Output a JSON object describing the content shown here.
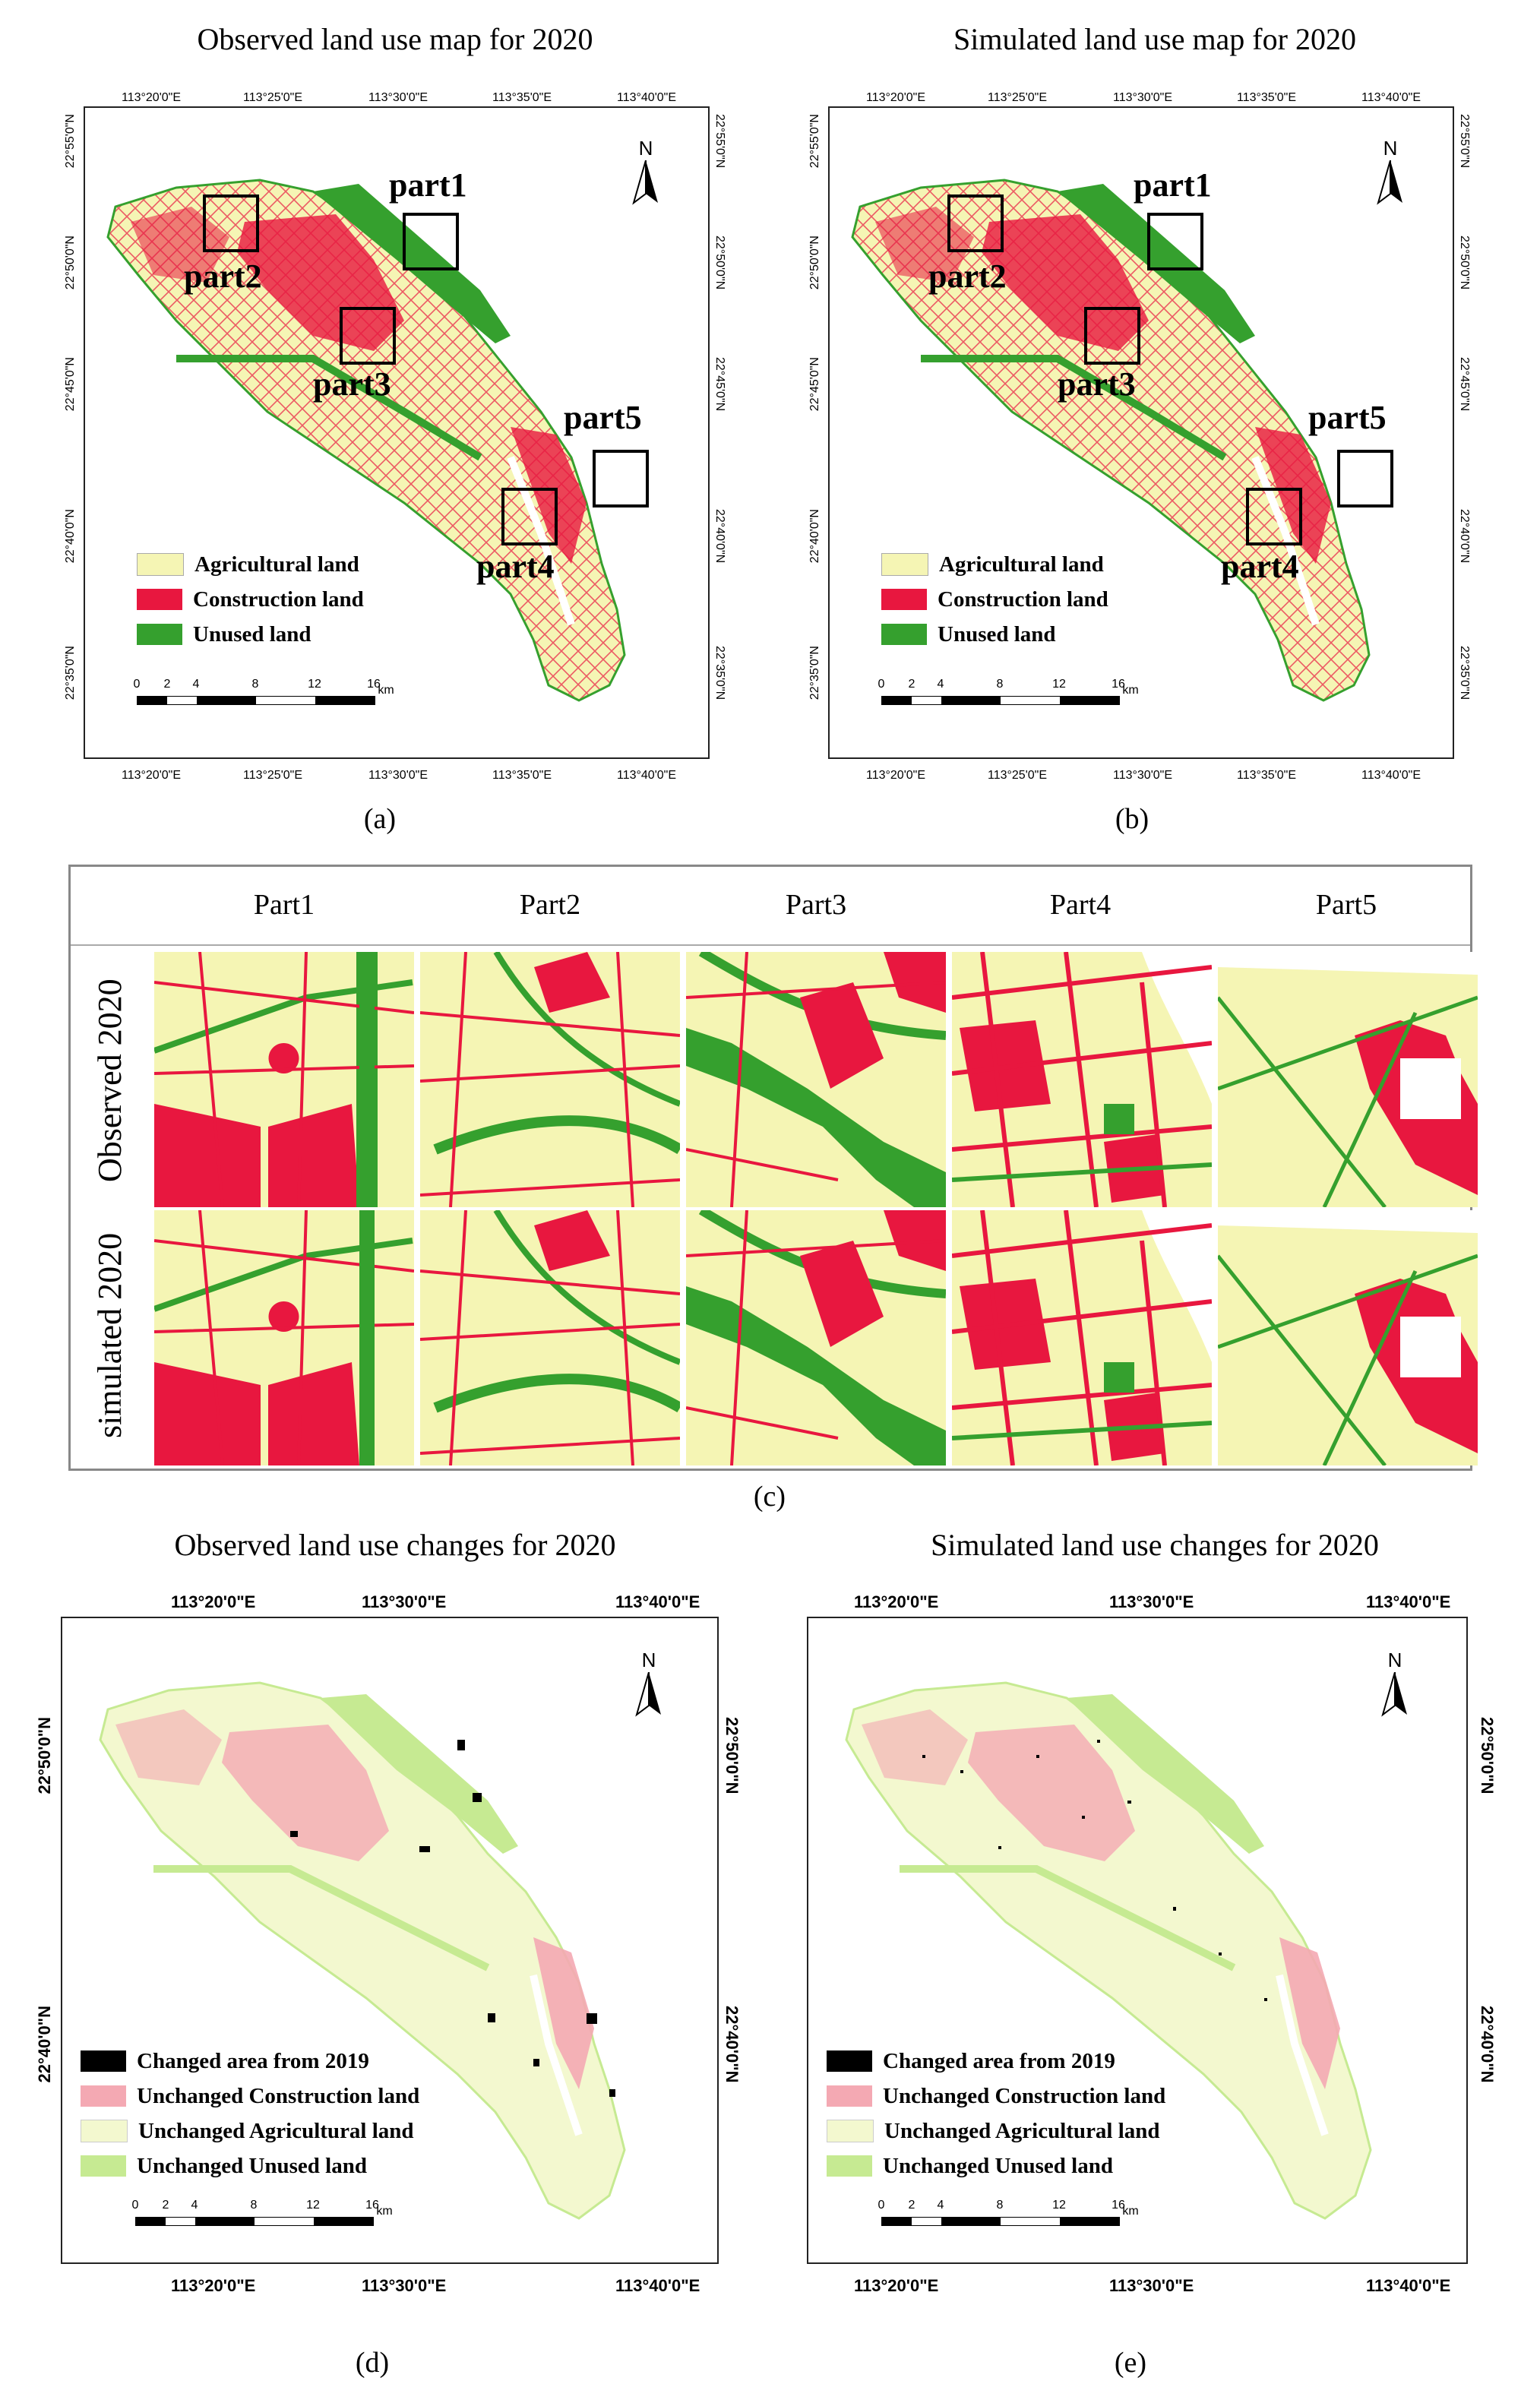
{
  "panel_a": {
    "title": "Observed land use map for 2020",
    "caption": "(a)",
    "lon_labels": [
      "113°20'0\"E",
      "113°25'0\"E",
      "113°30'0\"E",
      "113°35'0\"E",
      "113°40'0\"E"
    ],
    "lat_labels": [
      "22°55'0\"N",
      "22°50'0\"N",
      "22°45'0\"N",
      "22°40'0\"N",
      "22°35'0\"N"
    ],
    "parts": [
      "part1",
      "part2",
      "part3",
      "part4",
      "part5"
    ],
    "north": "N",
    "legend": [
      "Agricultural land",
      "Construction land",
      "Unused land"
    ],
    "scale_ticks": [
      "0",
      "2",
      "4",
      "8",
      "12",
      "16"
    ],
    "scale_unit": "km"
  },
  "panel_b": {
    "title": "Simulated land use map for 2020",
    "caption": "(b)",
    "lon_labels": [
      "113°20'0\"E",
      "113°25'0\"E",
      "113°30'0\"E",
      "113°35'0\"E",
      "113°40'0\"E"
    ],
    "lat_labels": [
      "22°55'0\"N",
      "22°50'0\"N",
      "22°45'0\"N",
      "22°40'0\"N",
      "22°35'0\"N"
    ],
    "parts": [
      "part1",
      "part2",
      "part3",
      "part4",
      "part5"
    ],
    "north": "N",
    "legend": [
      "Agricultural land",
      "Construction land",
      "Unused land"
    ],
    "scale_ticks": [
      "0",
      "2",
      "4",
      "8",
      "12",
      "16"
    ],
    "scale_unit": "km"
  },
  "panel_c": {
    "caption": "(c)",
    "columns": [
      "Part1",
      "Part2",
      "Part3",
      "Part4",
      "Part5"
    ],
    "rows": [
      "Observed 2020",
      "simulated 2020"
    ]
  },
  "panel_d": {
    "title": "Observed land use changes for 2020",
    "caption": "(d)",
    "lon_labels": [
      "113°20'0\"E",
      "113°30'0\"E",
      "113°40'0\"E"
    ],
    "lat_labels": [
      "22°50'0\"N",
      "22°40'0\"N"
    ],
    "north": "N",
    "legend": [
      "Changed area from 2019",
      "Unchanged Construction land",
      "Unchanged Agricultural land",
      "Unchanged Unused land"
    ],
    "scale_ticks": [
      "0",
      "2",
      "4",
      "8",
      "12",
      "16"
    ],
    "scale_unit": "km"
  },
  "panel_e": {
    "title": "Simulated land use changes for 2020",
    "caption": "(e)",
    "lon_labels": [
      "113°20'0\"E",
      "113°30'0\"E",
      "113°40'0\"E"
    ],
    "lat_labels": [
      "22°50'0\"N",
      "22°40'0\"N"
    ],
    "north": "N",
    "legend": [
      "Changed area from 2019",
      "Unchanged Construction land",
      "Unchanged Agricultural land",
      "Unchanged Unused land"
    ],
    "scale_ticks": [
      "0",
      "2",
      "4",
      "8",
      "12",
      "16"
    ],
    "scale_unit": "km"
  },
  "colors": {
    "agricultural": "#f5f5b4",
    "construction": "#e8173f",
    "unused": "#35a02e",
    "changed": "#000000",
    "unchanged_construction": "#f4a9b3",
    "unchanged_agricultural": "#f3f8cf",
    "unchanged_unused": "#c6ea92"
  }
}
